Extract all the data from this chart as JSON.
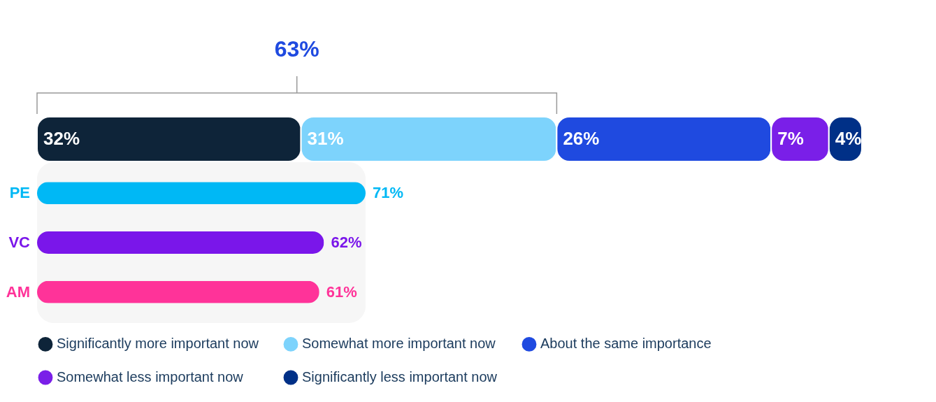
{
  "chart_data": [
    {
      "type": "bar",
      "orientation": "horizontal",
      "stacked": true,
      "categories": [
        null
      ],
      "legend": "bottom",
      "annotations": [
        "63%"
      ],
      "series": [
        {
          "name": "Significantly more important now",
          "color": "#0e2439",
          "values": [
            32
          ],
          "value_labels": [
            "32%"
          ]
        },
        {
          "name": "Somewhat more important now",
          "color": "#7dd3fc",
          "values": [
            31
          ],
          "value_labels": [
            "31%"
          ]
        },
        {
          "name": "About the same importance",
          "color": "#1f4ae0",
          "values": [
            26
          ],
          "value_labels": [
            "26%"
          ]
        },
        {
          "name": "Somewhat less important now",
          "color": "#7a1fe8",
          "values": [
            7
          ],
          "value_labels": [
            "7%"
          ]
        },
        {
          "name": "Significantly less important now",
          "color": "#003087",
          "values": [
            4
          ],
          "value_labels": [
            "4%"
          ]
        }
      ]
    },
    {
      "type": "bar",
      "orientation": "horizontal",
      "categories": [
        "PE",
        "VC",
        "AM"
      ],
      "values": [
        71,
        62,
        61
      ],
      "colors": [
        "#00b8f5",
        "#7a16ea",
        "#ff3399"
      ],
      "value_labels": [
        "71%",
        "62%",
        "61%"
      ]
    }
  ]
}
